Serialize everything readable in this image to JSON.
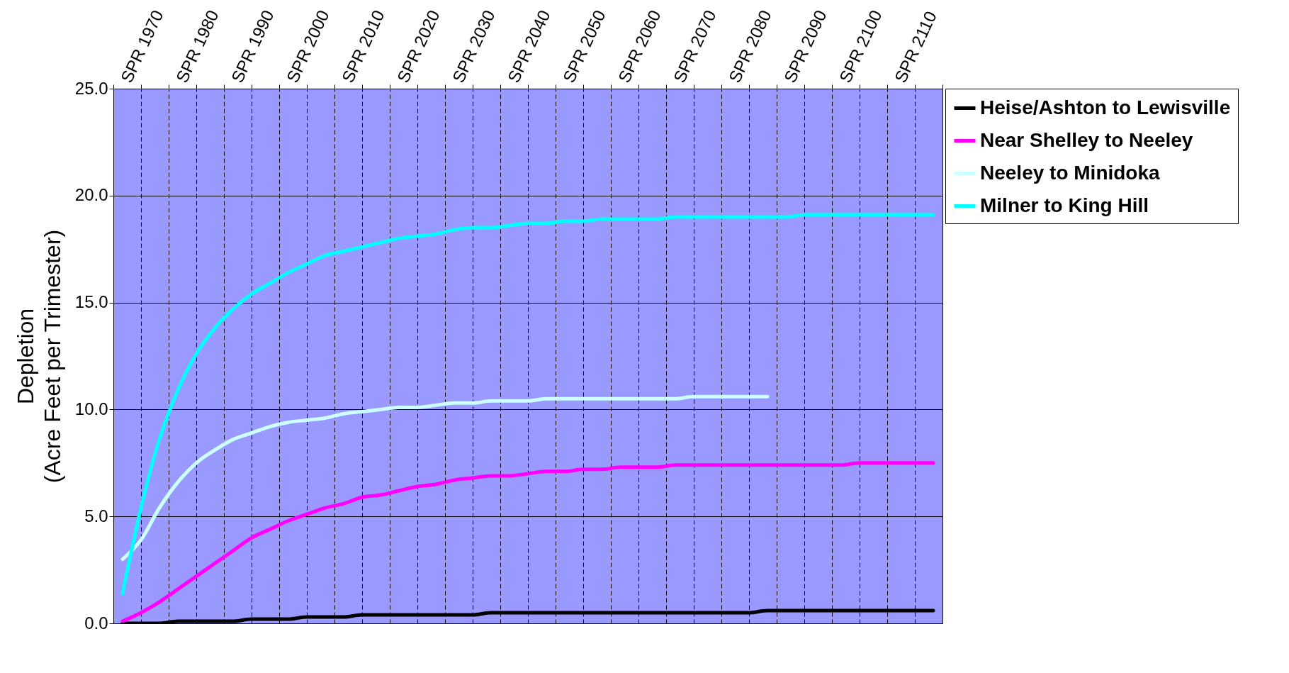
{
  "chart_data": {
    "type": "line",
    "ylabel": "Depletion\n(Acre Feet per Trimester)",
    "categories": [
      null,
      "SPR 1970",
      null,
      null,
      "SPR 1980",
      null,
      null,
      "SPR 1990",
      null,
      null,
      "SPR 2000",
      null,
      null,
      "SPR 2010",
      null,
      null,
      "SPR 2020",
      null,
      null,
      "SPR 2030",
      null,
      null,
      "SPR 2040",
      null,
      null,
      "SPR 2050",
      null,
      null,
      "SPR 2060",
      null,
      null,
      "SPR 2070",
      null,
      null,
      "SPR 2080",
      null,
      null,
      "SPR 2090",
      null,
      null,
      "SPR 2100",
      null,
      null,
      "SPR 2110",
      null
    ],
    "ylim": [
      0,
      25
    ],
    "yticks": [
      {
        "value": 0,
        "label": "0.0"
      },
      {
        "value": 5,
        "label": "5.0"
      },
      {
        "value": 10,
        "label": "10.0"
      },
      {
        "value": 15,
        "label": "15.0"
      },
      {
        "value": 20,
        "label": "20.0"
      },
      {
        "value": 25,
        "label": "25.0"
      }
    ],
    "grid": true,
    "legend": "right",
    "marker": "none",
    "line_style": "solid",
    "series": [
      {
        "name": "Heise/Ashton to Lewisville",
        "color": "#000000",
        "values": [
          0,
          0,
          0,
          0.1,
          0.1,
          0.1,
          0.1,
          0.2,
          0.2,
          0.2,
          0.3,
          0.3,
          0.3,
          0.4,
          0.4,
          0.4,
          0.4,
          0.4,
          0.4,
          0.4,
          0.5,
          0.5,
          0.5,
          0.5,
          0.5,
          0.5,
          0.5,
          0.5,
          0.5,
          0.5,
          0.5,
          0.5,
          0.5,
          0.5,
          0.5,
          0.6,
          0.6,
          0.6,
          0.6,
          0.6,
          0.6,
          0.6,
          0.6,
          0.6,
          0.6
        ]
      },
      {
        "name": "Near Shelley to Neeley",
        "color": "#ff00ff",
        "values": [
          0.1,
          0.5,
          1.0,
          1.6,
          2.2,
          2.8,
          3.4,
          4.0,
          4.4,
          4.8,
          5.1,
          5.4,
          5.6,
          5.9,
          6.0,
          6.2,
          6.4,
          6.5,
          6.7,
          6.8,
          6.9,
          6.9,
          7.0,
          7.1,
          7.1,
          7.2,
          7.2,
          7.3,
          7.3,
          7.3,
          7.4,
          7.4,
          7.4,
          7.4,
          7.4,
          7.4,
          7.4,
          7.4,
          7.4,
          7.4,
          7.5,
          7.5,
          7.5,
          7.5,
          7.5
        ]
      },
      {
        "name": "Neeley to Minidoka",
        "color": "#ccffff",
        "values": [
          3.0,
          3.9,
          5.4,
          6.6,
          7.5,
          8.1,
          8.6,
          8.9,
          9.2,
          9.4,
          9.5,
          9.6,
          9.8,
          9.9,
          10.0,
          10.1,
          10.1,
          10.2,
          10.3,
          10.3,
          10.4,
          10.4,
          10.4,
          10.5,
          10.5,
          10.5,
          10.5,
          10.5,
          10.5,
          10.5,
          10.5,
          10.6,
          10.6,
          10.6,
          10.6,
          10.6,
          null,
          null,
          null,
          null,
          null,
          null,
          null,
          null,
          null
        ]
      },
      {
        "name": "Milner to King Hill",
        "color": "#00ffff",
        "values": [
          1.4,
          5.4,
          8.6,
          10.9,
          12.6,
          13.8,
          14.7,
          15.4,
          15.9,
          16.4,
          16.8,
          17.2,
          17.4,
          17.6,
          17.8,
          18.0,
          18.1,
          18.2,
          18.4,
          18.5,
          18.5,
          18.6,
          18.7,
          18.7,
          18.8,
          18.8,
          18.9,
          18.9,
          18.9,
          18.9,
          19.0,
          19.0,
          19.0,
          19.0,
          19.0,
          19.0,
          19.0,
          19.1,
          19.1,
          19.1,
          19.1,
          19.1,
          19.1,
          19.1,
          19.1
        ]
      }
    ]
  }
}
